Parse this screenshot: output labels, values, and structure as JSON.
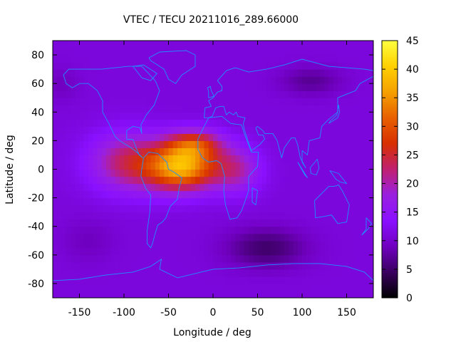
{
  "chart_data": {
    "type": "heatmap",
    "title": "VTEC / TECU 20211016_289.66000",
    "xlabel": "Longitude / deg",
    "ylabel": "Latitude / deg",
    "xlim": [
      -180,
      180
    ],
    "ylim": [
      -90,
      90
    ],
    "x_ticks": [
      -150,
      -100,
      -50,
      0,
      50,
      100,
      150
    ],
    "x_tick_labels": [
      "-150",
      "-100",
      "-50",
      "0",
      "50",
      "100",
      "150"
    ],
    "y_ticks": [
      80,
      60,
      40,
      20,
      0,
      -20,
      -40,
      -60,
      -80
    ],
    "y_tick_labels": [
      "80",
      "60",
      "40",
      "20",
      "0",
      "-20",
      "-40",
      "-60",
      "-80"
    ],
    "colorbar": {
      "range": [
        0,
        45
      ],
      "ticks": [
        45,
        40,
        35,
        30,
        25,
        20,
        15,
        10,
        5,
        0
      ],
      "tick_labels": [
        "45",
        "40",
        "35",
        "30",
        "25",
        "20",
        "15",
        "10",
        "5",
        "0"
      ],
      "palette": [
        "#000000",
        "#3a0060",
        "#7000c0",
        "#8a10ff",
        "#9a20e0",
        "#c02070",
        "#d83000",
        "#e86000",
        "#f5a000",
        "#ffd000",
        "#ffff40"
      ]
    },
    "field": {
      "description_units": "TECU",
      "background_value": 11,
      "features": [
        {
          "name": "equatorial-anomaly-core",
          "lon": -35,
          "lat": 2,
          "peak": 37
        },
        {
          "name": "equatorial-anomaly-north-crest",
          "lon": -20,
          "lat": 18,
          "peak": 34
        },
        {
          "name": "equatorial-anomaly-west",
          "lon": -95,
          "lat": 5,
          "peak": 27
        },
        {
          "name": "equatorial-anomaly-east",
          "lon": 25,
          "lat": 0,
          "peak": 26
        },
        {
          "name": "southern-low",
          "lon": 60,
          "lat": -55,
          "peak": 5
        },
        {
          "name": "northern-asia-low",
          "lon": 110,
          "lat": 62,
          "peak": 6
        }
      ]
    },
    "coastlines": {
      "color": "#1e90ff",
      "continents": [
        {
          "name": "north-america",
          "points": [
            [
              -168,
              66
            ],
            [
              -162,
              70
            ],
            [
              -140,
              70
            ],
            [
              -125,
              70
            ],
            [
              -95,
              72
            ],
            [
              -80,
              72
            ],
            [
              -65,
              62
            ],
            [
              -60,
              55
            ],
            [
              -66,
              45
            ],
            [
              -75,
              38
            ],
            [
              -81,
              31
            ],
            [
              -80,
              25
            ],
            [
              -82,
              29
            ],
            [
              -90,
              30
            ],
            [
              -97,
              27
            ],
            [
              -97,
              21
            ],
            [
              -90,
              21
            ],
            [
              -87,
              16
            ],
            [
              -83,
              10
            ],
            [
              -79,
              8
            ],
            [
              -84,
              11
            ],
            [
              -92,
              15
            ],
            [
              -105,
              20
            ],
            [
              -110,
              23
            ],
            [
              -117,
              32
            ],
            [
              -124,
              40
            ],
            [
              -124,
              48
            ],
            [
              -130,
              55
            ],
            [
              -140,
              60
            ],
            [
              -150,
              60
            ],
            [
              -158,
              57
            ],
            [
              -165,
              60
            ],
            [
              -168,
              66
            ]
          ]
        },
        {
          "name": "south-america",
          "points": [
            [
              -78,
              8
            ],
            [
              -72,
              12
            ],
            [
              -62,
              11
            ],
            [
              -52,
              5
            ],
            [
              -50,
              0
            ],
            [
              -44,
              -2
            ],
            [
              -35,
              -6
            ],
            [
              -38,
              -13
            ],
            [
              -40,
              -21
            ],
            [
              -48,
              -26
            ],
            [
              -53,
              -34
            ],
            [
              -57,
              -37
            ],
            [
              -62,
              -39
            ],
            [
              -65,
              -45
            ],
            [
              -68,
              -52
            ],
            [
              -70,
              -55
            ],
            [
              -74,
              -52
            ],
            [
              -74,
              -43
            ],
            [
              -71,
              -30
            ],
            [
              -70,
              -18
            ],
            [
              -76,
              -13
            ],
            [
              -81,
              -5
            ],
            [
              -80,
              0
            ],
            [
              -78,
              8
            ]
          ]
        },
        {
          "name": "greenland",
          "points": [
            [
              -72,
              78
            ],
            [
              -60,
              82
            ],
            [
              -30,
              83
            ],
            [
              -20,
              80
            ],
            [
              -20,
              72
            ],
            [
              -35,
              66
            ],
            [
              -42,
              60
            ],
            [
              -50,
              63
            ],
            [
              -55,
              70
            ],
            [
              -70,
              76
            ],
            [
              -72,
              78
            ]
          ]
        },
        {
          "name": "africa",
          "points": [
            [
              -17,
              21
            ],
            [
              -10,
              30
            ],
            [
              -5,
              36
            ],
            [
              10,
              37
            ],
            [
              20,
              32
            ],
            [
              32,
              31
            ],
            [
              35,
              25
            ],
            [
              43,
              12
            ],
            [
              51,
              12
            ],
            [
              50,
              2
            ],
            [
              40,
              -5
            ],
            [
              40,
              -15
            ],
            [
              35,
              -24
            ],
            [
              32,
              -29
            ],
            [
              27,
              -34
            ],
            [
              19,
              -35
            ],
            [
              14,
              -25
            ],
            [
              12,
              -15
            ],
            [
              13,
              -5
            ],
            [
              9,
              4
            ],
            [
              4,
              6
            ],
            [
              -5,
              5
            ],
            [
              -12,
              8
            ],
            [
              -17,
              14
            ],
            [
              -17,
              21
            ]
          ]
        },
        {
          "name": "eurasia",
          "points": [
            [
              -10,
              36
            ],
            [
              -9,
              43
            ],
            [
              -2,
              44
            ],
            [
              -5,
              48
            ],
            [
              0,
              50
            ],
            [
              5,
              54
            ],
            [
              10,
              55
            ],
            [
              10,
              58
            ],
            [
              5,
              62
            ],
            [
              15,
              69
            ],
            [
              25,
              71
            ],
            [
              40,
              68
            ],
            [
              60,
              70
            ],
            [
              80,
              73
            ],
            [
              100,
              77
            ],
            [
              130,
              72
            ],
            [
              150,
              71
            ],
            [
              170,
              70
            ],
            [
              180,
              69
            ],
            [
              180,
              65
            ],
            [
              165,
              60
            ],
            [
              160,
              55
            ],
            [
              140,
              50
            ],
            [
              140,
              40
            ],
            [
              130,
              35
            ],
            [
              122,
              30
            ],
            [
              120,
              22
            ],
            [
              108,
              20
            ],
            [
              106,
              10
            ],
            [
              100,
              13
            ],
            [
              100,
              5
            ],
            [
              104,
              1
            ],
            [
              98,
              8
            ],
            [
              95,
              17
            ],
            [
              92,
              22
            ],
            [
              88,
              22
            ],
            [
              80,
              15
            ],
            [
              77,
              8
            ],
            [
              72,
              20
            ],
            [
              67,
              25
            ],
            [
              58,
              25
            ],
            [
              56,
              27
            ],
            [
              50,
              30
            ],
            [
              48,
              29
            ],
            [
              51,
              24
            ],
            [
              56,
              24
            ],
            [
              58,
              21
            ],
            [
              52,
              17
            ],
            [
              43,
              13
            ],
            [
              39,
              20
            ],
            [
              35,
              28
            ],
            [
              34,
              32
            ],
            [
              36,
              36
            ],
            [
              28,
              37
            ],
            [
              26,
              40
            ],
            [
              23,
              38
            ],
            [
              18,
              40
            ],
            [
              15,
              38
            ],
            [
              12,
              44
            ],
            [
              8,
              44
            ],
            [
              3,
              43
            ],
            [
              -1,
              37
            ],
            [
              -5,
              36
            ],
            [
              -10,
              36
            ]
          ]
        },
        {
          "name": "australia",
          "points": [
            [
              114,
              -22
            ],
            [
              122,
              -17
            ],
            [
              130,
              -12
            ],
            [
              136,
              -12
            ],
            [
              141,
              -11
            ],
            [
              145,
              -15
            ],
            [
              153,
              -25
            ],
            [
              150,
              -37
            ],
            [
              140,
              -38
            ],
            [
              133,
              -32
            ],
            [
              125,
              -33
            ],
            [
              115,
              -34
            ],
            [
              114,
              -22
            ]
          ]
        },
        {
          "name": "antarctica",
          "points": [
            [
              -180,
              -78
            ],
            [
              -150,
              -77
            ],
            [
              -120,
              -74
            ],
            [
              -90,
              -72
            ],
            [
              -70,
              -68
            ],
            [
              -58,
              -63
            ],
            [
              -60,
              -70
            ],
            [
              -40,
              -76
            ],
            [
              0,
              -70
            ],
            [
              30,
              -69
            ],
            [
              60,
              -67
            ],
            [
              90,
              -66
            ],
            [
              120,
              -66
            ],
            [
              150,
              -68
            ],
            [
              170,
              -72
            ],
            [
              180,
              -78
            ]
          ]
        },
        {
          "name": "great-britain",
          "points": [
            [
              -5,
              50
            ],
            [
              1,
              51
            ],
            [
              -2,
              55
            ],
            [
              -3,
              58
            ],
            [
              -6,
              57
            ],
            [
              -5,
              54
            ],
            [
              -5,
              50
            ]
          ]
        },
        {
          "name": "madagascar",
          "points": [
            [
              44,
              -13
            ],
            [
              50,
              -15
            ],
            [
              48,
              -25
            ],
            [
              44,
              -23
            ],
            [
              44,
              -13
            ]
          ]
        },
        {
          "name": "japan",
          "points": [
            [
              130,
              32
            ],
            [
              135,
              34
            ],
            [
              140,
              36
            ],
            [
              142,
              40
            ],
            [
              141,
              45
            ],
            [
              139,
              38
            ],
            [
              132,
              34
            ],
            [
              130,
              32
            ]
          ]
        },
        {
          "name": "borneo",
          "points": [
            [
              109,
              1
            ],
            [
              117,
              7
            ],
            [
              119,
              1
            ],
            [
              116,
              -4
            ],
            [
              110,
              -3
            ],
            [
              109,
              1
            ]
          ]
        },
        {
          "name": "sumatra",
          "points": [
            [
              95,
              5
            ],
            [
              106,
              -6
            ],
            [
              103,
              -4
            ],
            [
              95,
              5
            ]
          ]
        },
        {
          "name": "new-guinea",
          "points": [
            [
              131,
              -1
            ],
            [
              141,
              -3
            ],
            [
              150,
              -10
            ],
            [
              143,
              -9
            ],
            [
              138,
              -7
            ],
            [
              131,
              -1
            ]
          ]
        },
        {
          "name": "new-zealand",
          "points": [
            [
              172,
              -34
            ],
            [
              178,
              -38
            ],
            [
              174,
              -42
            ],
            [
              167,
              -46
            ],
            [
              172,
              -42
            ],
            [
              172,
              -34
            ]
          ]
        },
        {
          "name": "baffin-island",
          "points": [
            [
              -90,
              72
            ],
            [
              -78,
              73
            ],
            [
              -63,
              67
            ],
            [
              -70,
              62
            ],
            [
              -80,
              64
            ],
            [
              -90,
              72
            ]
          ]
        }
      ]
    }
  }
}
